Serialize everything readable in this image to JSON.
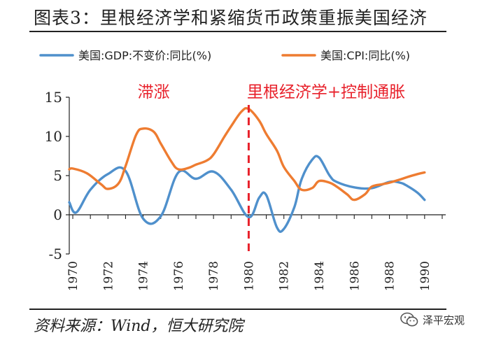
{
  "title": "图表3：里根经济学和紧缩货币政策重振美国经济",
  "source": "资料来源：Wind，恒大研究院",
  "watermark": "泽平宏观",
  "colors": {
    "gdp": "#4f90cc",
    "cpi": "#ee7c31",
    "divider": "#e8212b",
    "annotation": "#e8212b"
  },
  "chart_data": {
    "type": "line",
    "title": "",
    "xlabel": "",
    "ylabel": "",
    "ylim": [
      -5,
      15
    ],
    "xlim": [
      1969.8,
      1991.2
    ],
    "yticks": [
      -5,
      0,
      5,
      10,
      15
    ],
    "ytick_labels": [
      "-5",
      "0",
      "5",
      "10",
      "15"
    ],
    "xticks": [
      1970,
      1972,
      1974,
      1976,
      1978,
      1980,
      1982,
      1984,
      1986,
      1988,
      1990
    ],
    "xtick_labels": [
      "1970",
      "1972",
      "1974",
      "1976",
      "1978",
      "1980",
      "1982",
      "1984",
      "1986",
      "1988",
      "1990"
    ],
    "legend_position": "top",
    "series": [
      {
        "name": "美国:GDP:不变价:同比(%)",
        "color": "#4f90cc",
        "x": [
          1969.8,
          1970.2,
          1971,
          1972,
          1973,
          1974,
          1975,
          1976,
          1977,
          1978,
          1979,
          1980,
          1980.6,
          1981,
          1981.6,
          1982,
          1982.6,
          1983,
          1983.6,
          1984,
          1984.6,
          1985,
          1986,
          1987,
          1988,
          1988.6,
          1989,
          1989.6,
          1990
        ],
        "y": [
          1.6,
          0.3,
          3.2,
          5.2,
          5.6,
          -0.5,
          -0.2,
          5.4,
          4.6,
          5.5,
          3.2,
          -0.3,
          2.2,
          2.5,
          -1.6,
          -1.8,
          1.0,
          4.5,
          7.0,
          7.3,
          5.0,
          4.2,
          3.5,
          3.4,
          4.2,
          4.1,
          3.7,
          2.8,
          1.9
        ]
      },
      {
        "name": "美国:CPI:同比(%)",
        "color": "#ee7c31",
        "x": [
          1969.8,
          1970,
          1970.8,
          1971.6,
          1972,
          1972.6,
          1973,
          1973.6,
          1974,
          1974.6,
          1975,
          1975.6,
          1976,
          1976.6,
          1977,
          1977.6,
          1978,
          1978.6,
          1979,
          1979.6,
          1980,
          1980.6,
          1981,
          1981.6,
          1982,
          1982.6,
          1983,
          1983.6,
          1984,
          1984.6,
          1985,
          1985.6,
          1986,
          1986.6,
          1987,
          1987.6,
          1988,
          1988.6,
          1989,
          1989.6,
          1990
        ],
        "y": [
          5.8,
          5.9,
          5.3,
          3.9,
          3.3,
          4.0,
          6.2,
          10.2,
          11.0,
          10.6,
          9.1,
          6.8,
          5.8,
          6.0,
          6.4,
          6.9,
          7.7,
          9.9,
          11.3,
          13.2,
          13.5,
          12.0,
          10.3,
          8.2,
          6.1,
          4.3,
          3.2,
          3.4,
          4.3,
          4.1,
          3.6,
          2.6,
          1.9,
          2.6,
          3.6,
          3.9,
          4.1,
          4.5,
          4.8,
          5.2,
          5.4
        ]
      }
    ],
    "annotations": [
      {
        "text": "滞涨",
        "x": 1974.6,
        "y": 15.5
      },
      {
        "text": "里根经济学+控制通胀",
        "x": 1984.4,
        "y": 15.5
      }
    ],
    "divider_x": 1980
  }
}
